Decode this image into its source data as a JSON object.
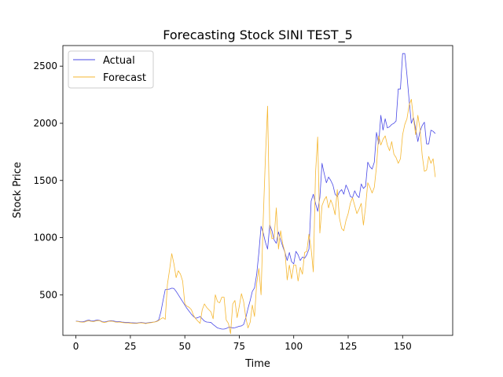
{
  "chart_data": {
    "type": "line",
    "title": "Forecasting Stock SINI TEST_5",
    "xlabel": "Time",
    "ylabel": "Stock Price",
    "xlim": [
      -6,
      173
    ],
    "ylim": [
      145,
      2680
    ],
    "xticks": [
      0,
      25,
      50,
      75,
      100,
      125,
      150
    ],
    "yticks": [
      500,
      1000,
      1500,
      2000,
      2500
    ],
    "legend_position": "top-left",
    "series": [
      {
        "name": "Actual",
        "color": "#4a4ae6",
        "x_start": 0,
        "values": [
          270,
          268,
          265,
          263,
          268,
          275,
          278,
          272,
          270,
          276,
          280,
          275,
          265,
          262,
          266,
          270,
          274,
          272,
          268,
          265,
          266,
          262,
          260,
          258,
          258,
          256,
          255,
          254,
          253,
          256,
          258,
          255,
          252,
          255,
          258,
          260,
          262,
          268,
          280,
          350,
          450,
          545,
          548,
          550,
          558,
          555,
          530,
          500,
          470,
          440,
          410,
          380,
          355,
          330,
          310,
          295,
          300,
          310,
          290,
          270,
          262,
          260,
          258,
          240,
          225,
          210,
          205,
          200,
          200,
          205,
          215,
          215,
          210,
          212,
          218,
          225,
          228,
          240,
          300,
          380,
          450,
          530,
          560,
          680,
          870,
          1100,
          1040,
          960,
          900,
          1110,
          1060,
          980,
          950,
          1050,
          980,
          920,
          870,
          800,
          870,
          790,
          770,
          880,
          850,
          800,
          830,
          820,
          850,
          900,
          1320,
          1380,
          1300,
          1230,
          1350,
          1650,
          1560,
          1480,
          1530,
          1500,
          1460,
          1380,
          1360,
          1400,
          1420,
          1380,
          1460,
          1420,
          1360,
          1350,
          1410,
          1370,
          1350,
          1470,
          1430,
          1450,
          1660,
          1620,
          1600,
          1660,
          1920,
          1820,
          2070,
          1940,
          2040,
          1960,
          1970,
          1990,
          2000,
          2020,
          2300,
          2300,
          2610,
          2610,
          2420,
          2200,
          2000,
          2050,
          1950,
          1840,
          1930,
          1980,
          2010,
          1820,
          1820,
          1940,
          1930,
          1910
        ]
      },
      {
        "name": "Forecast",
        "color": "#f5b731",
        "x_start": 0,
        "values": [
          268,
          266,
          262,
          260,
          262,
          270,
          272,
          268,
          265,
          270,
          275,
          272,
          262,
          258,
          262,
          268,
          270,
          268,
          262,
          260,
          262,
          258,
          256,
          254,
          254,
          252,
          250,
          250,
          250,
          253,
          255,
          252,
          248,
          252,
          255,
          258,
          262,
          265,
          275,
          290,
          300,
          285,
          590,
          720,
          860,
          770,
          650,
          710,
          680,
          620,
          420,
          400,
          390,
          370,
          320,
          290,
          270,
          250,
          370,
          420,
          390,
          370,
          350,
          290,
          500,
          440,
          430,
          480,
          480,
          280,
          250,
          160,
          420,
          450,
          300,
          400,
          510,
          440,
          300,
          210,
          260,
          410,
          310,
          600,
          730,
          500,
          1160,
          1700,
          2150,
          1100,
          990,
          1000,
          1260,
          900,
          1060,
          940,
          870,
          630,
          760,
          640,
          760,
          760,
          620,
          740,
          680,
          870,
          880,
          1030,
          900,
          700,
          1560,
          1880,
          1040,
          1280,
          1330,
          1360,
          1260,
          1330,
          1280,
          1200,
          1420,
          1170,
          1080,
          1060,
          1150,
          1210,
          1300,
          1350,
          1280,
          1210,
          1250,
          1300,
          1110,
          1270,
          1480,
          1440,
          1390,
          1440,
          1620,
          1890,
          1810,
          1860,
          1890,
          1810,
          1760,
          1840,
          1730,
          1700,
          1650,
          1690,
          1900,
          1990,
          2040,
          2160,
          2210,
          2040,
          1900,
          2070,
          1950,
          1720,
          1580,
          1590,
          1710,
          1650,
          1690,
          1530
        ]
      }
    ]
  }
}
